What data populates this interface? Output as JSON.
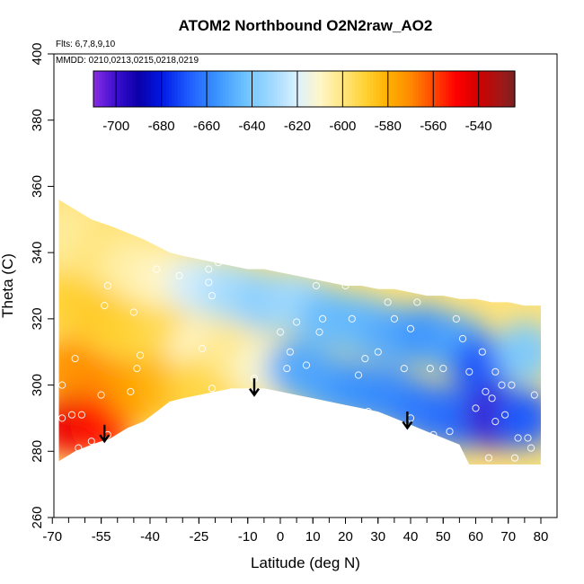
{
  "chart_data": {
    "type": "heatmap",
    "title": "ATOM2 Northbound O2N2raw_AO2",
    "note_flights": "Flts: 6,7,8,9,10",
    "note_dates": "MMDD: 0210,0213,0215,0218,0219",
    "xlabel": "Latitude (deg N)",
    "ylabel": "Theta (C)",
    "xlim": [
      -70,
      82
    ],
    "ylim": [
      260,
      400
    ],
    "x_ticks": [
      -70,
      -55,
      -40,
      -25,
      -10,
      0,
      10,
      20,
      30,
      40,
      50,
      60,
      70,
      80
    ],
    "y_ticks": [
      260,
      280,
      300,
      320,
      340,
      360,
      380,
      400
    ],
    "colorbar": {
      "range": [
        -710,
        -524
      ],
      "ticks": [
        -700,
        -680,
        -660,
        -640,
        -620,
        -600,
        -580,
        -560,
        -540
      ],
      "color_stops": [
        {
          "v": -710,
          "c": "#8a2be2"
        },
        {
          "v": -700,
          "c": "#3b0fd0"
        },
        {
          "v": -690,
          "c": "#0a00a8"
        },
        {
          "v": -680,
          "c": "#0018e6"
        },
        {
          "v": -668,
          "c": "#1e5cff"
        },
        {
          "v": -655,
          "c": "#3c96ff"
        },
        {
          "v": -643,
          "c": "#6ec3ff"
        },
        {
          "v": -630,
          "c": "#a6dcff"
        },
        {
          "v": -620,
          "c": "#dbf1ff"
        },
        {
          "v": -610,
          "c": "#fff6c8"
        },
        {
          "v": -600,
          "c": "#ffe680"
        },
        {
          "v": -590,
          "c": "#ffd233"
        },
        {
          "v": -580,
          "c": "#ffb000"
        },
        {
          "v": -570,
          "c": "#ff8a00"
        },
        {
          "v": -560,
          "c": "#ff4800"
        },
        {
          "v": -550,
          "c": "#ff0000"
        },
        {
          "v": -540,
          "c": "#d10000"
        },
        {
          "v": -530,
          "c": "#a01818"
        },
        {
          "v": -524,
          "c": "#7a2020"
        }
      ]
    },
    "surface_envelope": {
      "lat": [
        -68,
        -63,
        -58,
        -52,
        -47,
        -42,
        -38,
        -34,
        -30,
        -25,
        -20,
        -15,
        -10,
        -5,
        0,
        5,
        10,
        15,
        20,
        25,
        30,
        35,
        40,
        45,
        50,
        55,
        58,
        60,
        65,
        70,
        75,
        80
      ],
      "top": [
        356,
        353,
        350,
        348,
        346,
        344,
        342,
        340,
        339,
        338,
        337,
        336,
        335,
        335,
        334,
        333,
        332,
        331,
        330,
        330,
        329,
        329,
        328,
        327,
        327,
        326,
        326,
        326,
        325,
        325,
        324,
        324
      ],
      "bottom": [
        277,
        280,
        282,
        284,
        287,
        289,
        292,
        295,
        296,
        297,
        298,
        299,
        299,
        299,
        298,
        297,
        296,
        295,
        294,
        293,
        292,
        290,
        288,
        286,
        284,
        282,
        276,
        276,
        276,
        276,
        276,
        276
      ]
    },
    "field_cells": [
      {
        "lat": -65,
        "theta": 345,
        "v": -604
      },
      {
        "lat": -65,
        "theta": 325,
        "v": -590
      },
      {
        "lat": -65,
        "theta": 305,
        "v": -572
      },
      {
        "lat": -65,
        "theta": 288,
        "v": -545
      },
      {
        "lat": -55,
        "theta": 340,
        "v": -600
      },
      {
        "lat": -55,
        "theta": 320,
        "v": -588
      },
      {
        "lat": -55,
        "theta": 300,
        "v": -570
      },
      {
        "lat": -55,
        "theta": 288,
        "v": -552
      },
      {
        "lat": -45,
        "theta": 335,
        "v": -606
      },
      {
        "lat": -45,
        "theta": 315,
        "v": -590
      },
      {
        "lat": -45,
        "theta": 298,
        "v": -575
      },
      {
        "lat": -35,
        "theta": 332,
        "v": -610
      },
      {
        "lat": -35,
        "theta": 315,
        "v": -594
      },
      {
        "lat": -35,
        "theta": 300,
        "v": -582
      },
      {
        "lat": -25,
        "theta": 330,
        "v": -622
      },
      {
        "lat": -25,
        "theta": 310,
        "v": -610
      },
      {
        "lat": -25,
        "theta": 300,
        "v": -592
      },
      {
        "lat": -15,
        "theta": 328,
        "v": -630
      },
      {
        "lat": -15,
        "theta": 310,
        "v": -602
      },
      {
        "lat": -5,
        "theta": 325,
        "v": -636
      },
      {
        "lat": -5,
        "theta": 305,
        "v": -612
      },
      {
        "lat": 5,
        "theta": 325,
        "v": -632
      },
      {
        "lat": 5,
        "theta": 305,
        "v": -650
      },
      {
        "lat": 15,
        "theta": 320,
        "v": -645
      },
      {
        "lat": 15,
        "theta": 300,
        "v": -652
      },
      {
        "lat": 25,
        "theta": 318,
        "v": -646
      },
      {
        "lat": 25,
        "theta": 298,
        "v": -656
      },
      {
        "lat": 35,
        "theta": 315,
        "v": -650
      },
      {
        "lat": 35,
        "theta": 296,
        "v": -658
      },
      {
        "lat": 45,
        "theta": 315,
        "v": -655
      },
      {
        "lat": 45,
        "theta": 292,
        "v": -662
      },
      {
        "lat": 55,
        "theta": 312,
        "v": -652
      },
      {
        "lat": 55,
        "theta": 290,
        "v": -665
      },
      {
        "lat": 62,
        "theta": 305,
        "v": -670
      },
      {
        "lat": 66,
        "theta": 290,
        "v": -700
      },
      {
        "lat": 75,
        "theta": 310,
        "v": -640
      },
      {
        "lat": 75,
        "theta": 290,
        "v": -668
      }
    ],
    "sample_points": [
      {
        "lat": -67,
        "theta": 290
      },
      {
        "lat": -64,
        "theta": 291
      },
      {
        "lat": -61,
        "theta": 291
      },
      {
        "lat": -58,
        "theta": 283
      },
      {
        "lat": -62,
        "theta": 281
      },
      {
        "lat": -53,
        "theta": 285
      },
      {
        "lat": -55,
        "theta": 297
      },
      {
        "lat": -67,
        "theta": 300
      },
      {
        "lat": -63,
        "theta": 308
      },
      {
        "lat": -54,
        "theta": 324
      },
      {
        "lat": -53,
        "theta": 330
      },
      {
        "lat": -45,
        "theta": 322
      },
      {
        "lat": -43,
        "theta": 309
      },
      {
        "lat": -44,
        "theta": 305
      },
      {
        "lat": -46,
        "theta": 298
      },
      {
        "lat": -38,
        "theta": 335
      },
      {
        "lat": -31,
        "theta": 333
      },
      {
        "lat": -22,
        "theta": 331
      },
      {
        "lat": -21,
        "theta": 327
      },
      {
        "lat": -22,
        "theta": 335
      },
      {
        "lat": -19,
        "theta": 337
      },
      {
        "lat": -24,
        "theta": 311
      },
      {
        "lat": -21,
        "theta": 299
      },
      {
        "lat": -16,
        "theta": 339
      },
      {
        "lat": -12,
        "theta": 339
      },
      {
        "lat": -6,
        "theta": 339
      },
      {
        "lat": -8,
        "theta": 302
      },
      {
        "lat": 0,
        "theta": 316
      },
      {
        "lat": 3,
        "theta": 310
      },
      {
        "lat": 2,
        "theta": 305
      },
      {
        "lat": 4,
        "theta": 296
      },
      {
        "lat": 5,
        "theta": 319
      },
      {
        "lat": 5,
        "theta": 336
      },
      {
        "lat": 9,
        "theta": 341
      },
      {
        "lat": 10,
        "theta": 335
      },
      {
        "lat": 11,
        "theta": 330
      },
      {
        "lat": 11,
        "theta": 343
      },
      {
        "lat": 13,
        "theta": 320
      },
      {
        "lat": 12,
        "theta": 316
      },
      {
        "lat": 8,
        "theta": 306
      },
      {
        "lat": 15,
        "theta": 343
      },
      {
        "lat": 18,
        "theta": 340
      },
      {
        "lat": 20,
        "theta": 330
      },
      {
        "lat": 22,
        "theta": 320
      },
      {
        "lat": 24,
        "theta": 303
      },
      {
        "lat": 26,
        "theta": 308
      },
      {
        "lat": 27,
        "theta": 292
      },
      {
        "lat": 30,
        "theta": 310
      },
      {
        "lat": 33,
        "theta": 325
      },
      {
        "lat": 35,
        "theta": 320
      },
      {
        "lat": 38,
        "theta": 305
      },
      {
        "lat": 40,
        "theta": 317
      },
      {
        "lat": 40,
        "theta": 290
      },
      {
        "lat": 42,
        "theta": 325
      },
      {
        "lat": 46,
        "theta": 305
      },
      {
        "lat": 47,
        "theta": 285
      },
      {
        "lat": 50,
        "theta": 305
      },
      {
        "lat": 52,
        "theta": 286
      },
      {
        "lat": 54,
        "theta": 320
      },
      {
        "lat": 56,
        "theta": 314
      },
      {
        "lat": 58,
        "theta": 304
      },
      {
        "lat": 60,
        "theta": 293
      },
      {
        "lat": 62,
        "theta": 310
      },
      {
        "lat": 63,
        "theta": 298
      },
      {
        "lat": 64,
        "theta": 278
      },
      {
        "lat": 66,
        "theta": 304
      },
      {
        "lat": 68,
        "theta": 300
      },
      {
        "lat": 69,
        "theta": 291
      },
      {
        "lat": 71,
        "theta": 300
      },
      {
        "lat": 72,
        "theta": 278
      },
      {
        "lat": 73,
        "theta": 284
      },
      {
        "lat": 76,
        "theta": 284
      },
      {
        "lat": 77,
        "theta": 281
      },
      {
        "lat": 78,
        "theta": 297
      },
      {
        "lat": 81,
        "theta": 277
      },
      {
        "lat": 66,
        "theta": 289
      },
      {
        "lat": 65,
        "theta": 296
      }
    ],
    "arrows": [
      {
        "lat": -54,
        "theta_top": 288,
        "theta_tip": 283
      },
      {
        "lat": -8,
        "theta_top": 302,
        "theta_tip": 297
      },
      {
        "lat": 39,
        "theta_top": 292,
        "theta_tip": 287
      }
    ]
  }
}
